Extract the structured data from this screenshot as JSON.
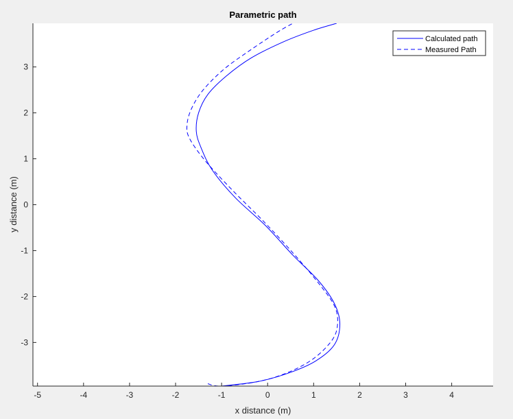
{
  "chart_data": {
    "type": "line",
    "title": "Parametric path",
    "xlabel": "x distance (m)",
    "ylabel": "y distance (m)",
    "xlim": [
      -5.1,
      4.9
    ],
    "ylim": [
      -3.95,
      3.95
    ],
    "xticks": [
      -5,
      -4,
      -3,
      -2,
      -1,
      0,
      1,
      2,
      3,
      4
    ],
    "yticks": [
      -3,
      -2,
      -1,
      0,
      1,
      2,
      3
    ],
    "grid": false,
    "legend_position": "top-right",
    "series": [
      {
        "name": "Calculated path",
        "style": "solid",
        "color": "#0000ff",
        "points": [
          [
            -1.0,
            -3.95
          ],
          [
            -0.2,
            -3.85
          ],
          [
            0.5,
            -3.65
          ],
          [
            1.05,
            -3.4
          ],
          [
            1.45,
            -3.05
          ],
          [
            1.57,
            -2.6
          ],
          [
            1.45,
            -2.15
          ],
          [
            1.1,
            -1.65
          ],
          [
            0.55,
            -1.1
          ],
          [
            -0.05,
            -0.45
          ],
          [
            -0.7,
            0.15
          ],
          [
            -1.2,
            0.75
          ],
          [
            -1.45,
            1.25
          ],
          [
            -1.55,
            1.6
          ],
          [
            -1.5,
            2.0
          ],
          [
            -1.3,
            2.4
          ],
          [
            -0.9,
            2.8
          ],
          [
            -0.35,
            3.2
          ],
          [
            0.35,
            3.55
          ],
          [
            1.0,
            3.8
          ],
          [
            1.5,
            3.95
          ]
        ]
      },
      {
        "name": "Measured Path",
        "style": "dashed",
        "color": "#0000ff",
        "points": [
          [
            -1.3,
            -3.9
          ],
          [
            -1.0,
            -3.95
          ],
          [
            -0.2,
            -3.85
          ],
          [
            0.45,
            -3.65
          ],
          [
            1.0,
            -3.35
          ],
          [
            1.4,
            -2.95
          ],
          [
            1.52,
            -2.6
          ],
          [
            1.45,
            -2.2
          ],
          [
            1.1,
            -1.7
          ],
          [
            0.55,
            -1.05
          ],
          [
            -0.1,
            -0.35
          ],
          [
            -0.75,
            0.3
          ],
          [
            -1.35,
            0.95
          ],
          [
            -1.7,
            1.45
          ],
          [
            -1.75,
            1.75
          ],
          [
            -1.65,
            2.1
          ],
          [
            -1.4,
            2.5
          ],
          [
            -0.95,
            2.95
          ],
          [
            -0.4,
            3.35
          ],
          [
            0.2,
            3.75
          ],
          [
            0.55,
            3.95
          ]
        ]
      }
    ]
  }
}
